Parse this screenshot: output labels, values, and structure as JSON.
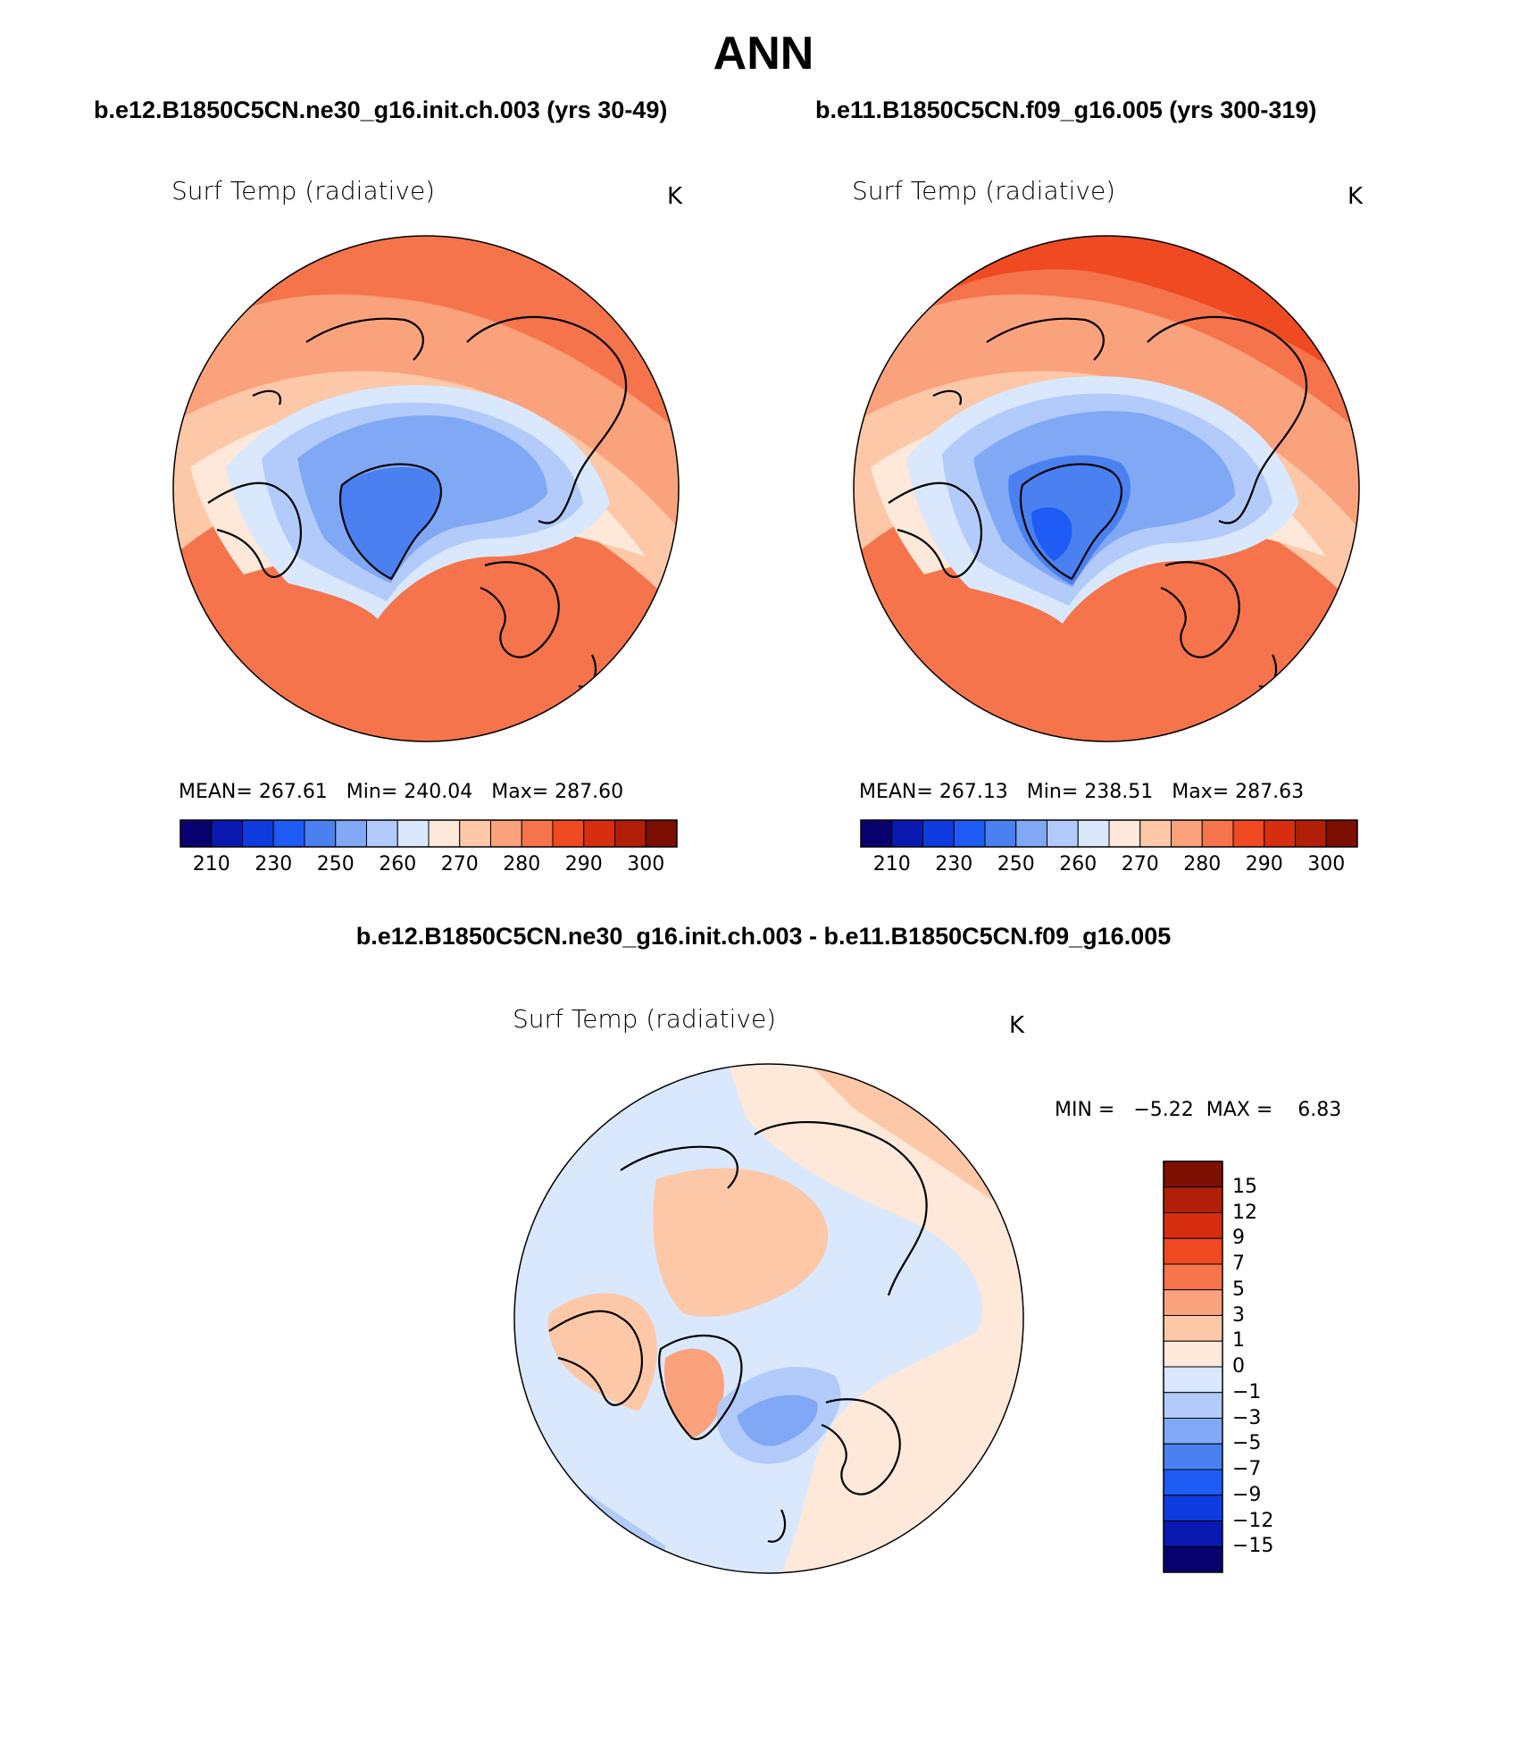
{
  "figure": {
    "title": "ANN",
    "case1_title": "b.e12.B1850C5CN.ne30_g16.init.ch.003 (yrs 30-49)",
    "case2_title": "b.e11.B1850C5CN.f09_g16.005 (yrs 300-319)",
    "diff_title": "b.e12.B1850C5CN.ne30_g16.init.ch.003 - b.e11.B1850C5CN.f09_g16.005"
  },
  "panels": [
    {
      "variable": "Surf Temp (radiative)",
      "units": "K",
      "stats": {
        "mean_label": "MEAN=",
        "mean": "267.61",
        "min_label": "Min=",
        "min": "240.04",
        "max_label": "Max=",
        "max": "287.60"
      }
    },
    {
      "variable": "Surf Temp (radiative)",
      "units": "K",
      "stats": {
        "mean_label": "MEAN=",
        "mean": "267.13",
        "min_label": "Min=",
        "min": "238.51",
        "max_label": "Max=",
        "max": "287.63"
      }
    },
    {
      "variable": "Surf Temp (radiative)",
      "units": "K",
      "stats": {
        "min_label": "MIN =",
        "min": "−5.22",
        "max_label": "MAX =",
        "max": "6.83"
      }
    }
  ],
  "abs_colorbar": {
    "colors": [
      "#08006e",
      "#0a1ab0",
      "#0f3ce0",
      "#1f5cf5",
      "#4a80f0",
      "#80a8f5",
      "#b3cbfa",
      "#d9e8fd",
      "#fde8d9",
      "#fcc8a8",
      "#f9a27c",
      "#f5744b",
      "#ef4a22",
      "#d82e10",
      "#b11f08",
      "#7d0e02"
    ],
    "ticks": [
      "210",
      "230",
      "250",
      "260",
      "270",
      "280",
      "290",
      "300"
    ]
  },
  "diff_colorbar": {
    "colors": [
      "#7d0e02",
      "#b11f08",
      "#d82e10",
      "#ef4a22",
      "#f5744b",
      "#f9a27c",
      "#fcc8a8",
      "#fde8d9",
      "#d9e8fd",
      "#b3cbfa",
      "#80a8f5",
      "#4a80f0",
      "#1f5cf5",
      "#0f3ce0",
      "#0a1ab0",
      "#08006e"
    ],
    "ticks": [
      "15",
      "12",
      "9",
      "7",
      "5",
      "3",
      "1",
      "0",
      "−1",
      "−3",
      "−5",
      "−7",
      "−9",
      "−12",
      "−15"
    ]
  }
}
